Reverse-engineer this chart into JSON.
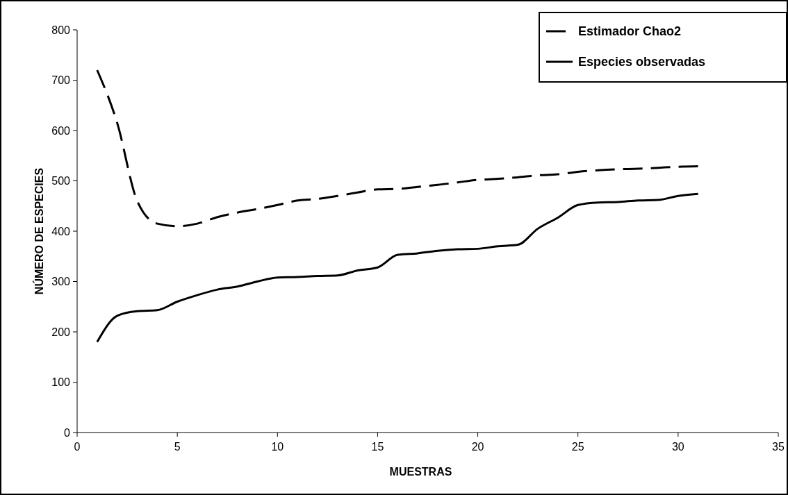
{
  "chart_data": {
    "type": "line",
    "xlabel": "MUESTRAS",
    "ylabel": "NÚMERO DE ESPECIES",
    "x": [
      1,
      2,
      3,
      4,
      5,
      6,
      7,
      8,
      9,
      10,
      11,
      12,
      13,
      14,
      15,
      16,
      17,
      18,
      19,
      20,
      21,
      22,
      23,
      24,
      25,
      26,
      27,
      28,
      29,
      30,
      31
    ],
    "series": [
      {
        "name": "Estimador Chao2",
        "color": "#000000",
        "line_style": "dashed",
        "values": [
          720,
          615,
          460,
          415,
          410,
          415,
          428,
          437,
          444,
          452,
          461,
          464,
          470,
          477,
          483,
          484,
          488,
          492,
          497,
          502,
          504,
          507,
          511,
          513,
          518,
          521,
          523,
          524,
          526,
          528,
          529
        ]
      },
      {
        "name": "Especies observadas",
        "color": "#000000",
        "line_style": "solid",
        "values": [
          180,
          232,
          241,
          243,
          260,
          273,
          284,
          290,
          300,
          308,
          309,
          311,
          312,
          322,
          328,
          353,
          356,
          361,
          364,
          365,
          370,
          373,
          405,
          427,
          452,
          457,
          458,
          461,
          462,
          470,
          474
        ]
      }
    ],
    "xlim": [
      0,
      35
    ],
    "xticks": [
      0,
      5,
      10,
      15,
      20,
      25,
      30,
      35
    ],
    "ylim": [
      0,
      800
    ],
    "yticks": [
      0,
      100,
      200,
      300,
      400,
      500,
      600,
      700,
      800
    ],
    "grid": false,
    "legend": "top right",
    "marker": "none"
  }
}
